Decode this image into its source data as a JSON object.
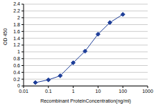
{
  "chart_data": {
    "type": "line",
    "x_label": "Recombinant ProteinConcentration(ng/ml)",
    "y_label": "OD 450",
    "x": [
      0.03,
      0.1,
      0.3,
      1,
      3,
      10,
      30,
      100
    ],
    "values": [
      0.1,
      0.18,
      0.3,
      0.68,
      1.02,
      1.52,
      1.86,
      2.1
    ],
    "color": "#1f3f99",
    "marker": "diamond",
    "log": "x",
    "xlim": [
      0.01,
      1000
    ],
    "xticks": [
      0.01,
      0.1,
      1,
      10,
      100,
      1000
    ],
    "ylim": [
      0,
      2.4
    ],
    "yticks": [
      0,
      0.2,
      0.4,
      0.6,
      0.8,
      1,
      1.2,
      1.4,
      1.6,
      1.8,
      2,
      2.2,
      2.4
    ],
    "grid": true
  }
}
